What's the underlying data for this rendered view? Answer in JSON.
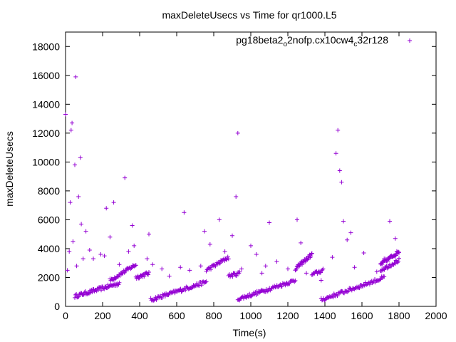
{
  "chart_data": {
    "type": "scatter",
    "title": "maxDeleteUsecs vs Time for qr1000.L5",
    "xlabel": "Time(s)",
    "ylabel": "maxDeleteUsecs",
    "xlim": [
      0,
      2000
    ],
    "ylim": [
      0,
      19000
    ],
    "xticks": [
      0,
      200,
      400,
      600,
      800,
      1000,
      1200,
      1400,
      1600,
      1800,
      2000
    ],
    "yticks": [
      0,
      2000,
      4000,
      6000,
      8000,
      10000,
      12000,
      14000,
      16000,
      18000
    ],
    "grid": false,
    "legend_position": "top-right",
    "marker": "+",
    "series_color": "#9400d3",
    "series": [
      {
        "name": "pg18beta2_o2nofp.cx10cw4_c32r128",
        "bands": [
          {
            "x_start": 50,
            "x_end": 290,
            "y_start": 700,
            "y_end": 1600,
            "count": 60
          },
          {
            "x_start": 240,
            "x_end": 380,
            "y_start": 1800,
            "y_end": 2900,
            "count": 35
          },
          {
            "x_start": 380,
            "x_end": 450,
            "y_start": 2000,
            "y_end": 2300,
            "count": 20
          },
          {
            "x_start": 460,
            "x_end": 760,
            "y_start": 450,
            "y_end": 1700,
            "count": 70
          },
          {
            "x_start": 760,
            "x_end": 880,
            "y_start": 2500,
            "y_end": 3400,
            "count": 30
          },
          {
            "x_start": 880,
            "x_end": 940,
            "y_start": 2100,
            "y_end": 2300,
            "count": 15
          },
          {
            "x_start": 930,
            "x_end": 1240,
            "y_start": 500,
            "y_end": 1800,
            "count": 70
          },
          {
            "x_start": 1240,
            "x_end": 1330,
            "y_start": 2600,
            "y_end": 3600,
            "count": 30
          },
          {
            "x_start": 1330,
            "x_end": 1390,
            "y_start": 2200,
            "y_end": 2500,
            "count": 15
          },
          {
            "x_start": 1380,
            "x_end": 1720,
            "y_start": 450,
            "y_end": 2000,
            "count": 75
          },
          {
            "x_start": 1700,
            "x_end": 1800,
            "y_start": 2900,
            "y_end": 3800,
            "count": 35
          },
          {
            "x_start": 1700,
            "x_end": 1800,
            "y_start": 2500,
            "y_end": 3200,
            "count": 25
          }
        ],
        "outliers": [
          [
            0,
            13300
          ],
          [
            10,
            2500
          ],
          [
            20,
            3800
          ],
          [
            25,
            7200
          ],
          [
            30,
            12200
          ],
          [
            35,
            12700
          ],
          [
            40,
            4500
          ],
          [
            50,
            9800
          ],
          [
            55,
            15900
          ],
          [
            60,
            2800
          ],
          [
            70,
            7600
          ],
          [
            80,
            10300
          ],
          [
            85,
            5700
          ],
          [
            95,
            3300
          ],
          [
            110,
            5200
          ],
          [
            130,
            3900
          ],
          [
            150,
            3300
          ],
          [
            190,
            3600
          ],
          [
            210,
            3500
          ],
          [
            220,
            6800
          ],
          [
            240,
            4800
          ],
          [
            260,
            7200
          ],
          [
            290,
            2900
          ],
          [
            320,
            8900
          ],
          [
            340,
            3800
          ],
          [
            360,
            5600
          ],
          [
            370,
            4200
          ],
          [
            440,
            3300
          ],
          [
            450,
            5000
          ],
          [
            470,
            2900
          ],
          [
            520,
            2600
          ],
          [
            560,
            2100
          ],
          [
            620,
            2700
          ],
          [
            640,
            6500
          ],
          [
            670,
            2500
          ],
          [
            730,
            2800
          ],
          [
            750,
            5200
          ],
          [
            780,
            4300
          ],
          [
            800,
            2800
          ],
          [
            830,
            6000
          ],
          [
            860,
            3800
          ],
          [
            900,
            4900
          ],
          [
            920,
            7600
          ],
          [
            930,
            12000
          ],
          [
            950,
            2600
          ],
          [
            1000,
            4200
          ],
          [
            1030,
            3600
          ],
          [
            1060,
            2300
          ],
          [
            1080,
            2800
          ],
          [
            1100,
            5800
          ],
          [
            1140,
            3100
          ],
          [
            1200,
            2600
          ],
          [
            1250,
            6000
          ],
          [
            1270,
            4400
          ],
          [
            1300,
            2300
          ],
          [
            1380,
            1800
          ],
          [
            1440,
            3400
          ],
          [
            1460,
            10600
          ],
          [
            1470,
            12200
          ],
          [
            1480,
            9400
          ],
          [
            1490,
            8600
          ],
          [
            1500,
            5900
          ],
          [
            1520,
            4600
          ],
          [
            1540,
            5100
          ],
          [
            1560,
            2700
          ],
          [
            1610,
            3700
          ],
          [
            1680,
            2400
          ],
          [
            1720,
            3300
          ],
          [
            1750,
            5900
          ],
          [
            1780,
            4700
          ]
        ]
      }
    ]
  }
}
